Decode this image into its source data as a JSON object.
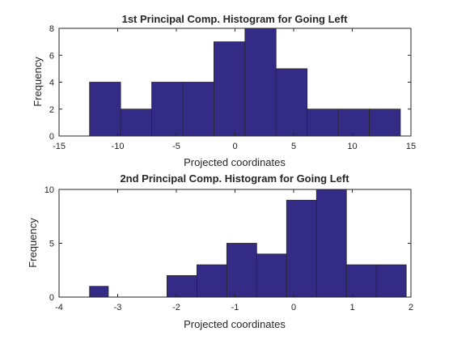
{
  "chart_data": [
    {
      "type": "bar",
      "title": "1st Principal Comp. Histogram for Going Left",
      "xlabel": "Projected coordinates",
      "ylabel": "Frequency",
      "xlim": [
        -15,
        15
      ],
      "ylim": [
        0,
        8
      ],
      "xticks": [
        "-15",
        "-10",
        "-5",
        "0",
        "5",
        "10",
        "15"
      ],
      "yticks": [
        "0",
        "2",
        "4",
        "6",
        "8"
      ],
      "bin_edges": [
        -12.4,
        -9.75,
        -7.1,
        -4.45,
        -1.8,
        0.85,
        3.5,
        6.15,
        8.8,
        11.45,
        14.1
      ],
      "values": [
        4,
        2,
        4,
        4,
        7,
        8,
        5,
        2,
        2,
        2
      ],
      "bar_color": "#342b87",
      "grid": false
    },
    {
      "type": "bar",
      "title": "2nd Principal Comp. Histogram for Going Left",
      "xlabel": "Projected coordinates",
      "ylabel": "Frequency",
      "xlim": [
        -4,
        2
      ],
      "ylim": [
        0,
        10
      ],
      "xticks": [
        "-4",
        "-3",
        "-2",
        "-1",
        "0",
        "1",
        "2"
      ],
      "yticks": [
        "0",
        "5",
        "10"
      ],
      "bin_edges": [
        -4.0,
        -3.48,
        -3.16,
        -2.16,
        -1.65,
        -1.14,
        -0.63,
        -0.12,
        0.39,
        0.9,
        1.41,
        1.92
      ],
      "values": [
        0,
        1,
        0,
        2,
        3,
        5,
        4,
        9,
        10,
        3,
        3
      ],
      "bar_color": "#342b87",
      "grid": false
    }
  ]
}
